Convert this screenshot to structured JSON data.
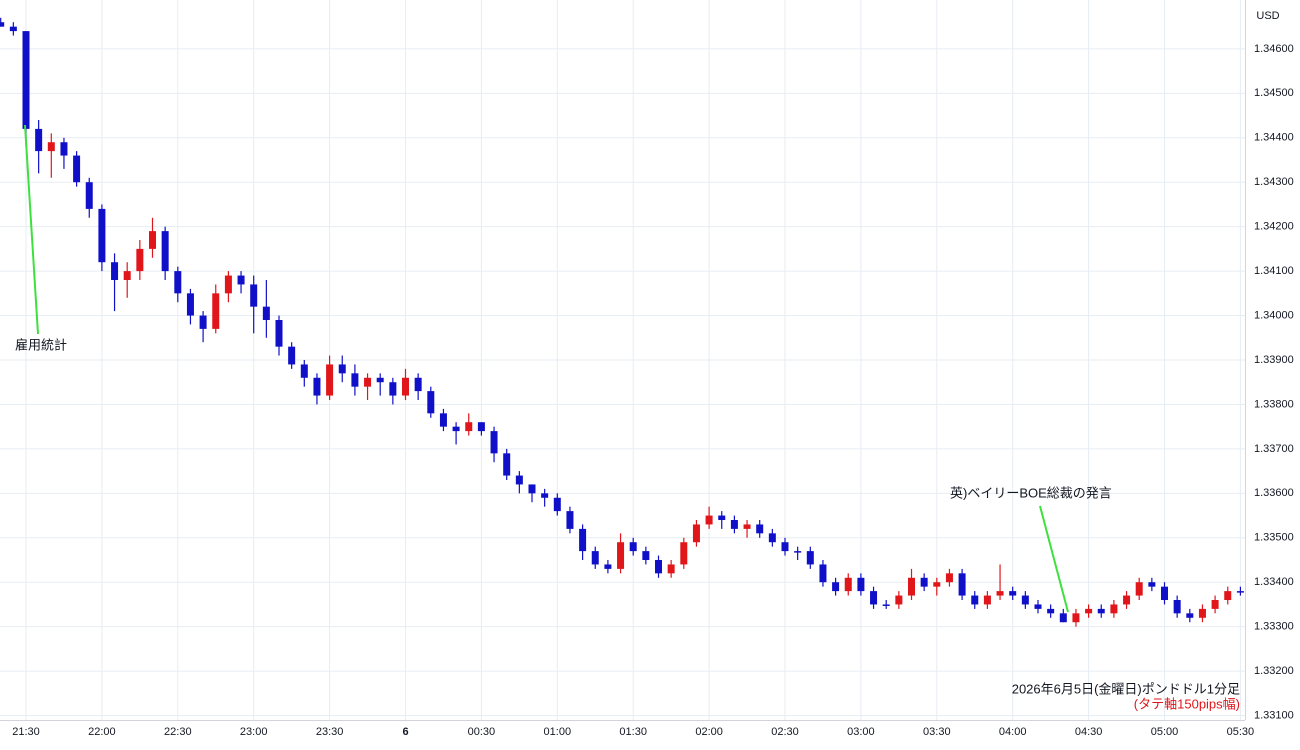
{
  "chart_data": {
    "type": "candlestick",
    "currency": "USD",
    "annotations": [
      "雇用統計",
      "英)ベイリーBOE総裁の発言"
    ],
    "caption": "2026年6月5日(金曜日)ポンドドル1分足",
    "caption_note": "(タテ軸150pips幅)",
    "up_color": "#e0161b",
    "down_color": "#1010c8",
    "grid": true,
    "ylim": [
      1.3309,
      1.3471
    ],
    "yticks": [
      {
        "value": 1.331,
        "label": "1.33100"
      },
      {
        "value": 1.332,
        "label": "1.33200"
      },
      {
        "value": 1.333,
        "label": "1.33300"
      },
      {
        "value": 1.334,
        "label": "1.33400"
      },
      {
        "value": 1.335,
        "label": "1.33500"
      },
      {
        "value": 1.336,
        "label": "1.33600"
      },
      {
        "value": 1.337,
        "label": "1.33700"
      },
      {
        "value": 1.338,
        "label": "1.33800"
      },
      {
        "value": 1.339,
        "label": "1.33900"
      },
      {
        "value": 1.34,
        "label": "1.34000"
      },
      {
        "value": 1.341,
        "label": "1.34100"
      },
      {
        "value": 1.342,
        "label": "1.34200"
      },
      {
        "value": 1.343,
        "label": "1.34300"
      },
      {
        "value": 1.344,
        "label": "1.34400"
      },
      {
        "value": 1.345,
        "label": "1.34500"
      },
      {
        "value": 1.346,
        "label": "1.34600"
      }
    ],
    "categories": [
      null,
      null,
      "21:30",
      null,
      null,
      null,
      null,
      null,
      "22:00",
      null,
      null,
      null,
      null,
      null,
      "22:30",
      null,
      null,
      null,
      null,
      null,
      "23:00",
      null,
      null,
      null,
      null,
      null,
      "23:30",
      null,
      null,
      null,
      null,
      null,
      "6",
      null,
      null,
      null,
      null,
      null,
      "00:30",
      null,
      null,
      null,
      null,
      null,
      "01:00",
      null,
      null,
      null,
      null,
      null,
      "01:30",
      null,
      null,
      null,
      null,
      null,
      "02:00",
      null,
      null,
      null,
      null,
      null,
      "02:30",
      null,
      null,
      null,
      null,
      null,
      "03:00",
      null,
      null,
      null,
      null,
      null,
      "03:30",
      null,
      null,
      null,
      null,
      null,
      "04:00",
      null,
      null,
      null,
      null,
      null,
      "04:30",
      null,
      null,
      null,
      null,
      null,
      "05:00",
      null,
      null,
      null,
      null,
      null,
      "05:30"
    ],
    "open": [
      1.3466,
      1.3465,
      1.3464,
      1.3442,
      1.3437,
      1.3439,
      1.3436,
      1.343,
      1.3424,
      1.3412,
      1.3408,
      1.341,
      1.3415,
      1.3419,
      1.341,
      1.3405,
      1.34,
      1.3397,
      1.3405,
      1.3409,
      1.3407,
      1.3402,
      1.3399,
      1.3393,
      1.3389,
      1.3386,
      1.3382,
      1.3389,
      1.3387,
      1.3384,
      1.3386,
      1.3385,
      1.3382,
      1.3386,
      1.3383,
      1.3378,
      1.3375,
      1.3374,
      1.3376,
      1.3374,
      1.3369,
      1.3364,
      1.3362,
      1.336,
      1.3359,
      1.3356,
      1.3352,
      1.3347,
      1.3344,
      1.3343,
      1.3349,
      1.3347,
      1.3345,
      1.3342,
      1.3344,
      1.3349,
      1.3353,
      1.3355,
      1.3354,
      1.3352,
      1.3353,
      1.3351,
      1.3349,
      1.3347,
      1.3347,
      1.3344,
      1.334,
      1.3338,
      1.3341,
      1.3338,
      1.3335,
      1.3335,
      1.3337,
      1.3341,
      1.3339,
      1.334,
      1.3342,
      1.3337,
      1.3335,
      1.3337,
      1.3338,
      1.3337,
      1.3335,
      1.3334,
      1.3333,
      1.3331,
      1.3333,
      1.3334,
      1.3333,
      1.3335,
      1.3337,
      1.334,
      1.3339,
      1.3336,
      1.3333,
      1.3332,
      1.3334,
      1.3336,
      1.3338
    ],
    "high": [
      1.3467,
      1.3466,
      1.3464,
      1.3444,
      1.3441,
      1.344,
      1.3437,
      1.3431,
      1.3425,
      1.3414,
      1.3412,
      1.3417,
      1.3422,
      1.342,
      1.3411,
      1.3406,
      1.3401,
      1.3407,
      1.341,
      1.341,
      1.3409,
      1.3408,
      1.34,
      1.3394,
      1.339,
      1.3387,
      1.3391,
      1.3391,
      1.3389,
      1.3387,
      1.3387,
      1.3386,
      1.3388,
      1.3387,
      1.3384,
      1.3379,
      1.3376,
      1.3378,
      1.3376,
      1.3375,
      1.337,
      1.3365,
      1.3362,
      1.3361,
      1.336,
      1.3357,
      1.3353,
      1.3348,
      1.3345,
      1.3351,
      1.335,
      1.3348,
      1.3346,
      1.3345,
      1.335,
      1.3354,
      1.3357,
      1.3356,
      1.3355,
      1.3354,
      1.3354,
      1.3352,
      1.335,
      1.3348,
      1.3348,
      1.3345,
      1.3341,
      1.3342,
      1.3342,
      1.3339,
      1.3336,
      1.3338,
      1.3343,
      1.3342,
      1.3341,
      1.3343,
      1.3343,
      1.3338,
      1.3338,
      1.3344,
      1.3339,
      1.3338,
      1.3336,
      1.3335,
      1.3334,
      1.3334,
      1.3335,
      1.3335,
      1.3336,
      1.3338,
      1.3341,
      1.3341,
      1.334,
      1.3337,
      1.3334,
      1.3335,
      1.3337,
      1.3339,
      1.3339
    ],
    "low": [
      1.3465,
      1.3463,
      1.3438,
      1.3432,
      1.3431,
      1.3433,
      1.3429,
      1.3422,
      1.341,
      1.3401,
      1.3404,
      1.3408,
      1.3413,
      1.3408,
      1.3403,
      1.3398,
      1.3394,
      1.3396,
      1.3403,
      1.3405,
      1.3396,
      1.3395,
      1.3391,
      1.3388,
      1.3384,
      1.338,
      1.3381,
      1.3385,
      1.3382,
      1.3381,
      1.3382,
      1.338,
      1.3381,
      1.3381,
      1.3377,
      1.3374,
      1.3371,
      1.3373,
      1.3373,
      1.3367,
      1.3363,
      1.336,
      1.3358,
      1.3357,
      1.3355,
      1.3351,
      1.3345,
      1.3343,
      1.3342,
      1.3342,
      1.3346,
      1.3344,
      1.3341,
      1.3341,
      1.3343,
      1.3348,
      1.3352,
      1.3352,
      1.3351,
      1.335,
      1.335,
      1.3348,
      1.3346,
      1.3345,
      1.3343,
      1.3339,
      1.3337,
      1.3337,
      1.3337,
      1.3334,
      1.3334,
      1.3334,
      1.3336,
      1.3338,
      1.3337,
      1.3339,
      1.3336,
      1.3334,
      1.3334,
      1.3336,
      1.3336,
      1.3334,
      1.3333,
      1.3332,
      1.3331,
      1.333,
      1.3332,
      1.3332,
      1.3332,
      1.3334,
      1.3336,
      1.3338,
      1.3335,
      1.3332,
      1.3331,
      1.3331,
      1.3333,
      1.3335,
      1.3337
    ],
    "close": [
      1.3465,
      1.3464,
      1.3442,
      1.3437,
      1.3439,
      1.3436,
      1.343,
      1.3424,
      1.3412,
      1.3408,
      1.341,
      1.3415,
      1.3419,
      1.341,
      1.3405,
      1.34,
      1.3397,
      1.3405,
      1.3409,
      1.3407,
      1.3402,
      1.3399,
      1.3393,
      1.3389,
      1.3386,
      1.3382,
      1.3389,
      1.3387,
      1.3384,
      1.3386,
      1.3385,
      1.3382,
      1.3386,
      1.3383,
      1.3378,
      1.3375,
      1.3374,
      1.3376,
      1.3374,
      1.3369,
      1.3364,
      1.3362,
      1.336,
      1.3359,
      1.3356,
      1.3352,
      1.3347,
      1.3344,
      1.3343,
      1.3349,
      1.3347,
      1.3345,
      1.3342,
      1.3344,
      1.3349,
      1.3353,
      1.3355,
      1.3354,
      1.3352,
      1.3353,
      1.3351,
      1.3349,
      1.3347,
      1.3347,
      1.3344,
      1.334,
      1.3338,
      1.3341,
      1.3338,
      1.3335,
      1.3335,
      1.3337,
      1.3341,
      1.3339,
      1.334,
      1.3342,
      1.3337,
      1.3335,
      1.3337,
      1.3338,
      1.3337,
      1.3335,
      1.3334,
      1.3333,
      1.3331,
      1.3333,
      1.3334,
      1.3333,
      1.3335,
      1.3337,
      1.334,
      1.3339,
      1.3336,
      1.3333,
      1.3332,
      1.3334,
      1.3336,
      1.3338,
      1.3338
    ]
  }
}
